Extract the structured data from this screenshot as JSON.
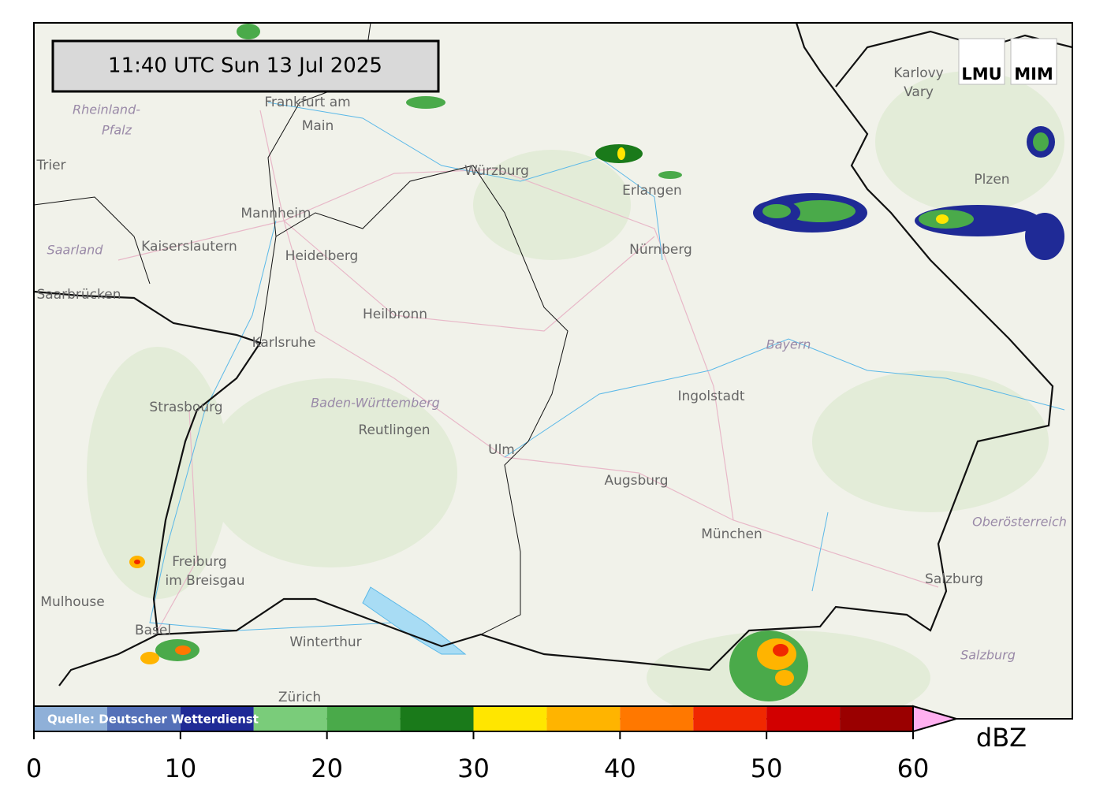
{
  "title": "11:40 UTC  Sun 13 Jul 2025",
  "logo": [
    "LMU",
    "MIM"
  ],
  "source": "Quelle: Deutscher Wetterdienst",
  "colorbar": {
    "label": "dBZ",
    "lim": [
      0,
      60
    ],
    "bounds": [
      0,
      5,
      10,
      15,
      20,
      25,
      30,
      35,
      40,
      45,
      50,
      55,
      60
    ],
    "colors": [
      "#8fb0d8",
      "#5470b8",
      "#1f2a96",
      "#7acc7a",
      "#4aaa4a",
      "#1a7a1a",
      "#ffe600",
      "#ffb400",
      "#ff7800",
      "#f02800",
      "#d20000",
      "#9a0000"
    ],
    "extend_color": "#ffb0f0",
    "ticks": [
      0,
      10,
      20,
      30,
      40,
      50,
      60
    ]
  },
  "places": [
    {
      "name": "Frankfurt am",
      "kind": "city"
    },
    {
      "name": "Main",
      "kind": "city"
    },
    {
      "name": "Rheinland-",
      "kind": "region"
    },
    {
      "name": "Pfalz",
      "kind": "region"
    },
    {
      "name": "Trier",
      "kind": "city"
    },
    {
      "name": "Würzburg",
      "kind": "city"
    },
    {
      "name": "Karlovy",
      "kind": "city"
    },
    {
      "name": "Vary",
      "kind": "city"
    },
    {
      "name": "Erlangen",
      "kind": "city"
    },
    {
      "name": "Plzen",
      "kind": "city"
    },
    {
      "name": "Mannheim",
      "kind": "city"
    },
    {
      "name": "Kaiserslautern",
      "kind": "city"
    },
    {
      "name": "Saarland",
      "kind": "region"
    },
    {
      "name": "Heidelberg",
      "kind": "city"
    },
    {
      "name": "Nürnberg",
      "kind": "city"
    },
    {
      "name": "Saarbrücken",
      "kind": "city"
    },
    {
      "name": "Heilbronn",
      "kind": "city"
    },
    {
      "name": "Karlsruhe",
      "kind": "city"
    },
    {
      "name": "Bayern",
      "kind": "region"
    },
    {
      "name": "Ingolstadt",
      "kind": "city"
    },
    {
      "name": "Strasbourg",
      "kind": "city"
    },
    {
      "name": "Baden-Württemberg",
      "kind": "region"
    },
    {
      "name": "Reutlingen",
      "kind": "city"
    },
    {
      "name": "Ulm",
      "kind": "city"
    },
    {
      "name": "Augsburg",
      "kind": "city"
    },
    {
      "name": "Oberösterreich",
      "kind": "region"
    },
    {
      "name": "München",
      "kind": "city"
    },
    {
      "name": "Freiburg",
      "kind": "city"
    },
    {
      "name": "im Breisgau",
      "kind": "city"
    },
    {
      "name": "Mulhouse",
      "kind": "city"
    },
    {
      "name": "Salzburg",
      "kind": "city"
    },
    {
      "name": "Basel",
      "kind": "city"
    },
    {
      "name": "Winterthur",
      "kind": "city"
    },
    {
      "name": "Salzburg",
      "kind": "region"
    },
    {
      "name": "Zürich",
      "kind": "city"
    }
  ]
}
